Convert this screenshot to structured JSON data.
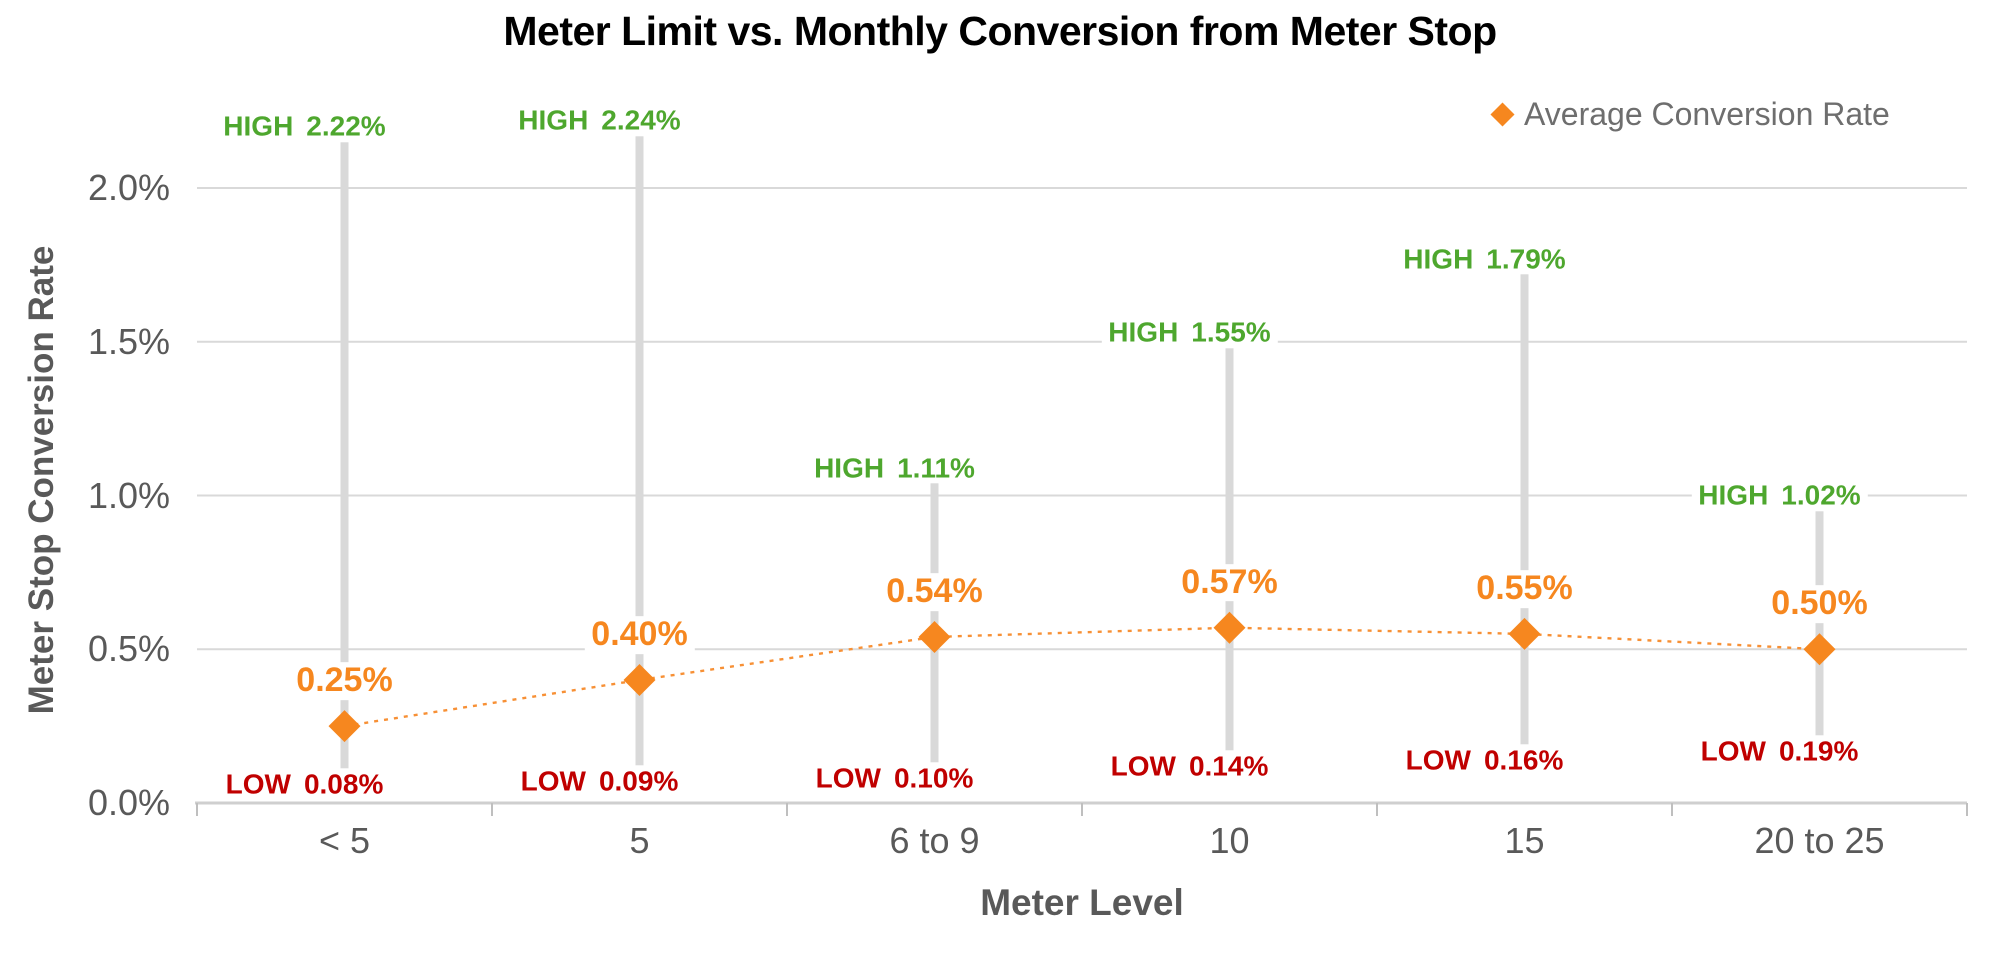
{
  "chart_data": {
    "type": "line",
    "subtype": "average-line-with-high-low-range-bars",
    "title": "Meter Limit vs. Monthly Conversion from Meter Stop",
    "xlabel": "Meter Level",
    "ylabel": "Meter Stop Conversion Rate",
    "legend": {
      "label": "Average Conversion Rate",
      "marker": "diamond-icon",
      "position": "top-right"
    },
    "categories": [
      "< 5",
      "5",
      "6 to 9",
      "10",
      "15",
      "20 to 25"
    ],
    "series": [
      {
        "name": "Average Conversion Rate",
        "role": "average",
        "marker": "diamond",
        "line_style": "dotted",
        "values_pct": [
          0.25,
          0.4,
          0.54,
          0.57,
          0.55,
          0.5
        ],
        "labels": [
          "0.25%",
          "0.40%",
          "0.54%",
          "0.57%",
          "0.55%",
          "0.50%"
        ]
      },
      {
        "name": "High",
        "role": "range-high",
        "label_prefix": "HIGH",
        "values_pct": [
          2.22,
          2.24,
          1.11,
          1.55,
          1.79,
          1.02
        ],
        "labels": [
          "2.22%",
          "2.24%",
          "1.11%",
          "1.55%",
          "1.79%",
          "1.02%"
        ]
      },
      {
        "name": "Low",
        "role": "range-low",
        "label_prefix": "LOW",
        "values_pct": [
          0.08,
          0.09,
          0.1,
          0.14,
          0.16,
          0.19
        ],
        "labels": [
          "0.08%",
          "0.09%",
          "0.10%",
          "0.14%",
          "0.16%",
          "0.19%"
        ]
      }
    ],
    "y_ticks": [
      "0.0%",
      "0.5%",
      "1.0%",
      "1.5%",
      "2.0%"
    ],
    "y_tick_values": [
      0.0,
      0.5,
      1.0,
      1.5,
      2.0
    ],
    "ylim": [
      0.0,
      2.3
    ],
    "grid": "horizontal"
  },
  "colors": {
    "average_orange": "#F6871F",
    "dotted_line_orange": "#F79035",
    "high_green": "#4EA72E",
    "low_red": "#C00000",
    "range_bar_gray": "#D9D9D9",
    "gridline_gray": "#D9D9D9",
    "axis_line_gray": "#CFCFCF",
    "tick_mark_gray": "#BFBFBF",
    "axis_text_gray": "#595959",
    "legend_text_gray": "#6E6E6E",
    "title_black": "#000000",
    "background": "#FFFFFF"
  }
}
